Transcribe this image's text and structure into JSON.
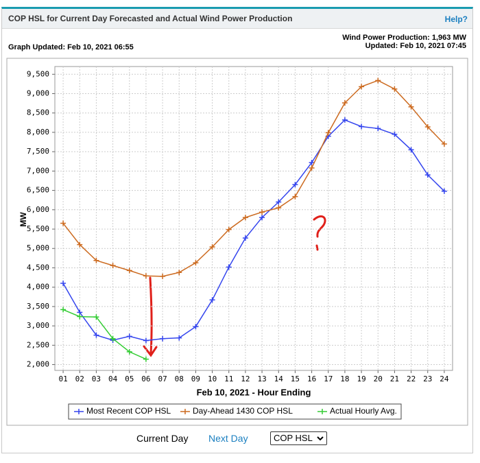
{
  "header": {
    "title": "COP HSL for Current Day Forecasted and Actual Wind Power Production",
    "help": "Help?"
  },
  "info": {
    "graph_updated": "Graph Updated: Feb 10, 2021 06:55",
    "wind_production": "Wind Power Production: 1,963 MW",
    "updated": "Updated: Feb 10, 2021 07:45"
  },
  "chart_data": {
    "type": "line",
    "x_label": "Feb 10, 2021 - Hour Ending",
    "y_label": "MW",
    "categories": [
      "01",
      "02",
      "03",
      "04",
      "05",
      "06",
      "07",
      "08",
      "09",
      "10",
      "11",
      "12",
      "13",
      "14",
      "15",
      "16",
      "17",
      "18",
      "19",
      "20",
      "21",
      "22",
      "23",
      "24"
    ],
    "series": [
      {
        "name": "Most Recent COP HSL",
        "color": "#3344ee",
        "values": [
          4100,
          3350,
          2760,
          2630,
          2730,
          2620,
          2670,
          2690,
          2980,
          3670,
          4520,
          5270,
          5800,
          6200,
          6650,
          7220,
          7900,
          8320,
          8150,
          8100,
          7950,
          7550,
          6900,
          6480
        ]
      },
      {
        "name": "Day-Ahead 1430 COP HSL",
        "color": "#cc6a1f",
        "values": [
          5650,
          5100,
          4690,
          4560,
          4430,
          4290,
          4280,
          4380,
          4630,
          5040,
          5490,
          5800,
          5940,
          6050,
          6340,
          7080,
          7990,
          8760,
          9180,
          9340,
          9120,
          8660,
          8140,
          7700
        ]
      },
      {
        "name": "Actual Hourly Avg.",
        "color": "#33cc33",
        "values": [
          3420,
          3240,
          3230,
          2670,
          2330,
          2140,
          null,
          null,
          null,
          null,
          null,
          null,
          null,
          null,
          null,
          null,
          null,
          null,
          null,
          null,
          null,
          null,
          null,
          null
        ]
      }
    ],
    "ylim": [
      1850,
      9700
    ],
    "yticks": [
      {
        "value": 2000,
        "label": "2,000"
      },
      {
        "value": 2500,
        "label": "2,500"
      },
      {
        "value": 3000,
        "label": "3,000"
      },
      {
        "value": 3500,
        "label": "3,500"
      },
      {
        "value": 4000,
        "label": "4,000"
      },
      {
        "value": 4500,
        "label": "4,500"
      },
      {
        "value": 5000,
        "label": "5,000"
      },
      {
        "value": 5500,
        "label": "5,500"
      },
      {
        "value": 6000,
        "label": "6,000"
      },
      {
        "value": 6500,
        "label": "6,500"
      },
      {
        "value": 7000,
        "label": "7,000"
      },
      {
        "value": 7500,
        "label": "7,500"
      },
      {
        "value": 8000,
        "label": "8,000"
      },
      {
        "value": 8500,
        "label": "8,500"
      },
      {
        "value": 9000,
        "label": "9,000"
      },
      {
        "value": 9500,
        "label": "9,500"
      }
    ],
    "grid": true,
    "legend": "bottom"
  },
  "controls": {
    "current_day": "Current Day",
    "next_day": "Next Day",
    "select": "COP HSL"
  }
}
